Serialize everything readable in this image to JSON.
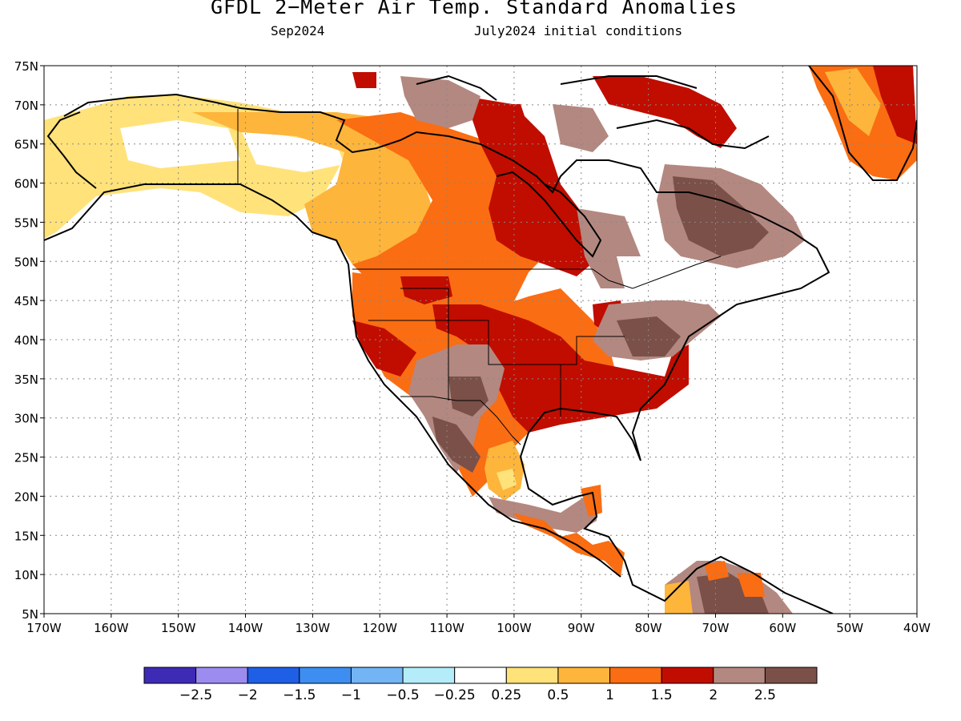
{
  "title": "GFDL 2−Meter Air Temp. Standard Anomalies",
  "subtitle_left": "Sep2024",
  "subtitle_right": "July2024 initial conditions",
  "map": {
    "lon_range": [
      -170,
      -40
    ],
    "lat_range": [
      5,
      75
    ],
    "lon_ticks": [
      "170W",
      "160W",
      "150W",
      "140W",
      "130W",
      "120W",
      "110W",
      "100W",
      "90W",
      "80W",
      "70W",
      "60W",
      "50W",
      "40W"
    ],
    "lat_ticks": [
      "75N",
      "70N",
      "65N",
      "60N",
      "55N",
      "50N",
      "45N",
      "40N",
      "35N",
      "30N",
      "25N",
      "20N",
      "15N",
      "10N",
      "5N"
    ],
    "grid": "dotted"
  },
  "colorbar": {
    "colors": [
      "#3d2bb5",
      "#9d8cf0",
      "#1f5fe6",
      "#3d8ef0",
      "#73b4f5",
      "#b4ecf9",
      "#ffffff",
      "#ffe27a",
      "#fdb53b",
      "#fa6d12",
      "#c00d00",
      "#b38880",
      "#7a5048"
    ],
    "labels": [
      "−2.5",
      "−2",
      "−1.5",
      "−1",
      "−0.5",
      "−0.25",
      "0.25",
      "0.5",
      "1",
      "1.5",
      "2",
      "2.5"
    ]
  }
}
